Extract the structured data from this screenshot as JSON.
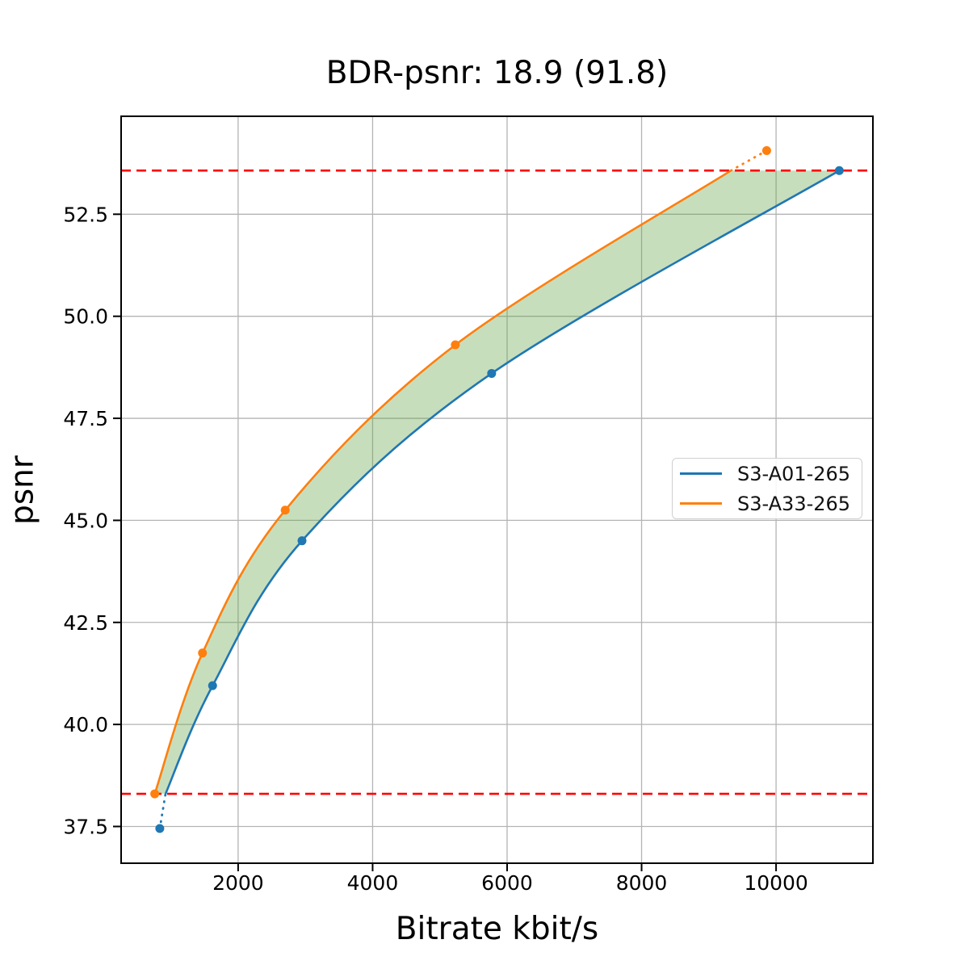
{
  "figure": {
    "title": "BDR-psnr: 18.9 (91.8)",
    "xlabel": "Bitrate kbit/s",
    "ylabel": "psnr"
  },
  "legend": {
    "entries": [
      {
        "label": "S3-A01-265",
        "color": "#1f77b4"
      },
      {
        "label": "S3-A33-265",
        "color": "#ff7f0e"
      }
    ]
  },
  "chart_data": {
    "type": "line",
    "title": "BDR-psnr: 18.9 (91.8)",
    "xlabel": "Bitrate kbit/s",
    "ylabel": "psnr",
    "xlim": [
      260,
      11440
    ],
    "ylim": [
      36.6,
      54.9
    ],
    "xticks": [
      2000,
      4000,
      6000,
      8000,
      10000
    ],
    "yticks": [
      37.5,
      40.0,
      42.5,
      45.0,
      47.5,
      50.0,
      52.5
    ],
    "grid": true,
    "grid_color": "#b4b4b4",
    "legend_position": "right-center",
    "series": [
      {
        "name": "S3-A01-265",
        "color": "#1f77b4",
        "points": [
          [
            835,
            37.45
          ],
          [
            1620,
            40.95
          ],
          [
            2950,
            44.5
          ],
          [
            5770,
            48.6
          ],
          [
            10940,
            53.57
          ]
        ],
        "solid_points": [
          [
            920,
            38.3
          ],
          [
            1620,
            40.95
          ],
          [
            2950,
            44.5
          ],
          [
            5770,
            48.6
          ],
          [
            10940,
            53.57
          ]
        ],
        "dotted_points": [
          [
            835,
            37.45
          ],
          [
            920,
            38.3
          ]
        ]
      },
      {
        "name": "S3-A33-265",
        "color": "#ff7f0e",
        "points": [
          [
            760,
            38.3
          ],
          [
            1470,
            41.75
          ],
          [
            2700,
            45.25
          ],
          [
            5230,
            49.3
          ],
          [
            9860,
            54.06
          ]
        ],
        "solid_points": [
          [
            760,
            38.3
          ],
          [
            1470,
            41.75
          ],
          [
            2700,
            45.25
          ],
          [
            5230,
            49.3
          ],
          [
            9330,
            53.57
          ]
        ],
        "dotted_points": [
          [
            9330,
            53.57
          ],
          [
            9860,
            54.06
          ]
        ]
      }
    ],
    "hlines": {
      "values": [
        38.3,
        53.57
      ],
      "color": "#ff0000",
      "style": "dashed"
    },
    "fill_between": {
      "between": [
        "S3-A33-265",
        "S3-A01-265"
      ],
      "color": "#5fa142",
      "opacity": 0.35
    }
  }
}
